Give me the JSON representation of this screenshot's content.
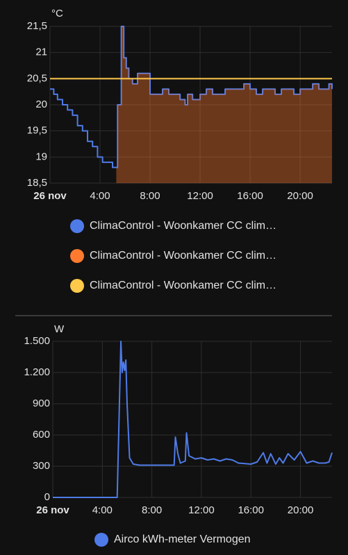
{
  "chart_data": [
    {
      "type": "line",
      "step": true,
      "grid": true,
      "y_label": "°C",
      "x": [
        0,
        0.3,
        0.6,
        1,
        1.4,
        1.8,
        2.2,
        2.6,
        3,
        3.4,
        3.8,
        4.2,
        4.6,
        5,
        5.3,
        5.4,
        5.7,
        5.9,
        6.1,
        6.3,
        6.6,
        7,
        7.5,
        8,
        8.5,
        9,
        9.5,
        10,
        10.4,
        10.8,
        11,
        11.4,
        12,
        12.5,
        13,
        14,
        15,
        15.5,
        16,
        16.5,
        17,
        18,
        18.5,
        19,
        19.5,
        20,
        20.5,
        21,
        21.5,
        22,
        22.3,
        22.55
      ],
      "series": [
        {
          "name": "ClimaControl - Woonkamer CC clim…",
          "color": "#4f7be8",
          "fill": false,
          "values": [
            20.3,
            20.2,
            20.1,
            20,
            19.9,
            19.8,
            19.6,
            19.5,
            19.3,
            19.2,
            19.0,
            18.9,
            18.9,
            18.8,
            18.8,
            20.0,
            21.5,
            20.9,
            20.7,
            20.5,
            20.4,
            20.6,
            20.6,
            20.2,
            20.2,
            20.3,
            20.2,
            20.2,
            20.1,
            20.0,
            20.2,
            20.1,
            20.2,
            20.3,
            20.2,
            20.3,
            20.3,
            20.4,
            20.3,
            20.2,
            20.3,
            20.2,
            20.3,
            20.3,
            20.2,
            20.3,
            20.3,
            20.4,
            20.3,
            20.3,
            20.4,
            20.3
          ]
        },
        {
          "name": "ClimaControl - Woonkamer CC clim…",
          "color": "#ff7a2f",
          "fill": true,
          "values": [
            null,
            null,
            null,
            null,
            null,
            null,
            null,
            null,
            null,
            null,
            null,
            null,
            null,
            null,
            18.8,
            20.0,
            21.5,
            20.9,
            20.7,
            20.5,
            20.4,
            20.6,
            20.6,
            20.2,
            20.2,
            20.3,
            20.2,
            20.2,
            20.1,
            20.0,
            20.2,
            20.1,
            20.2,
            20.3,
            20.2,
            20.3,
            20.3,
            20.4,
            20.3,
            20.2,
            20.3,
            20.2,
            20.3,
            20.3,
            20.2,
            20.3,
            20.3,
            20.4,
            20.3,
            20.3,
            20.4,
            20.3
          ]
        },
        {
          "name": "ClimaControl - Woonkamer CC clim…",
          "color": "#ffc94a",
          "fill": false,
          "values": [
            20.5,
            20.5,
            20.5,
            20.5,
            20.5,
            20.5,
            20.5,
            20.5,
            20.5,
            20.5,
            20.5,
            20.5,
            20.5,
            20.5,
            20.5,
            20.5,
            20.5,
            20.5,
            20.5,
            20.5,
            20.5,
            20.5,
            20.5,
            20.5,
            20.5,
            20.5,
            20.5,
            20.5,
            20.5,
            20.5,
            20.5,
            20.5,
            20.5,
            20.5,
            20.5,
            20.5,
            20.5,
            20.5,
            20.5,
            20.5,
            20.5,
            20.5,
            20.5,
            20.5,
            20.5,
            20.5,
            20.5,
            20.5,
            20.5,
            20.5,
            20.5,
            20.5
          ]
        }
      ],
      "xlim": [
        0,
        22.55
      ],
      "xticks": [
        {
          "value": 0,
          "label": "26 nov"
        },
        {
          "value": 4,
          "label": "4:00"
        },
        {
          "value": 8,
          "label": "8:00"
        },
        {
          "value": 12,
          "label": "12:00"
        },
        {
          "value": 16,
          "label": "16:00"
        },
        {
          "value": 20,
          "label": "20:00"
        }
      ],
      "ylim": [
        18.5,
        21.5
      ],
      "yticks": [
        {
          "value": 18.5,
          "label": "18,5"
        },
        19,
        {
          "value": 19.5,
          "label": "19,5"
        },
        20,
        {
          "value": 20.5,
          "label": "20,5"
        },
        21,
        {
          "value": 21.5,
          "label": "21,5"
        }
      ]
    },
    {
      "type": "line",
      "step": false,
      "grid": true,
      "y_label": "W",
      "x": [
        0,
        5.2,
        5.5,
        5.6,
        5.7,
        5.8,
        5.9,
        6.0,
        6.2,
        6.5,
        7,
        8,
        9,
        9.8,
        9.9,
        10.1,
        10.3,
        10.7,
        10.8,
        11,
        11.5,
        12,
        12.5,
        13,
        13.5,
        14,
        14.5,
        15,
        16,
        16.5,
        17,
        17.3,
        17.6,
        18,
        18.3,
        18.6,
        19,
        19.5,
        20,
        20.5,
        21,
        21.5,
        22,
        22.3,
        22.55
      ],
      "series": [
        {
          "name": "Airco kWh-meter Vermogen",
          "color": "#4f7be8",
          "fill": false,
          "values": [
            0,
            0,
            1500,
            1200,
            1300,
            1220,
            1320,
            900,
            380,
            320,
            310,
            310,
            310,
            310,
            580,
            420,
            330,
            350,
            620,
            400,
            370,
            380,
            360,
            370,
            350,
            370,
            360,
            330,
            320,
            340,
            430,
            330,
            420,
            320,
            380,
            330,
            420,
            360,
            440,
            330,
            350,
            330,
            330,
            340,
            430
          ]
        }
      ],
      "xlim": [
        0,
        22.55
      ],
      "xticks": [
        {
          "value": 0,
          "label": "26 nov"
        },
        {
          "value": 4,
          "label": "4:00"
        },
        {
          "value": 8,
          "label": "8:00"
        },
        {
          "value": 12,
          "label": "12:00"
        },
        {
          "value": 16,
          "label": "16:00"
        },
        {
          "value": 20,
          "label": "20:00"
        }
      ],
      "ylim": [
        0,
        1500
      ],
      "yticks": [
        0,
        300,
        600,
        900,
        {
          "value": 1200,
          "label": "1.200"
        },
        {
          "value": 1500,
          "label": "1.500"
        }
      ]
    }
  ]
}
